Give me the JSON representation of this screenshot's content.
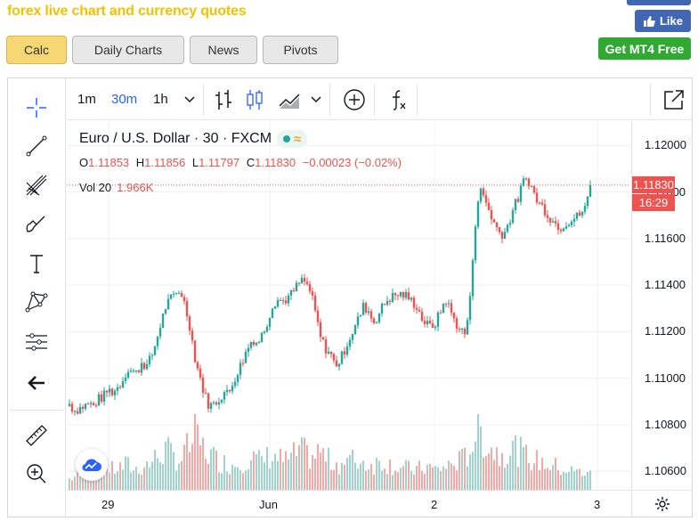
{
  "page": {
    "title": "forex live chart and currency quotes"
  },
  "social": {
    "like_label": "Like",
    "mt4_label": "Get MT4 Free"
  },
  "tabs": [
    {
      "label": "Calc",
      "active": true
    },
    {
      "label": "Daily Charts",
      "active": false
    },
    {
      "label": "News",
      "active": false
    },
    {
      "label": "Pivots",
      "active": false
    }
  ],
  "toolbar": {
    "timeframes": [
      {
        "label": "1m",
        "active": false
      },
      {
        "label": "30m",
        "active": true
      },
      {
        "label": "1h",
        "active": false
      }
    ],
    "icons": [
      "chevron-down-icon",
      "bar-chart-icon",
      "candlestick-icon",
      "area-chart-icon",
      "chevron-down-icon",
      "add-indicator-icon",
      "function-icon",
      "popout-icon"
    ]
  },
  "left_tools": [
    "crosshair-icon",
    "trend-line-icon",
    "fib-tool-icon",
    "brush-icon",
    "text-icon",
    "pattern-icon",
    "measure-tool-icon",
    "back-arrow-icon",
    "ruler-icon",
    "zoom-in-icon"
  ],
  "legend": {
    "symbol": "Euro / U.S. Dollar · 30 · FXCM",
    "ohlc": [
      {
        "k": "O",
        "v": "1.11853"
      },
      {
        "k": "H",
        "v": "1.11856"
      },
      {
        "k": "L",
        "v": "1.11797"
      },
      {
        "k": "C",
        "v": "1.11830"
      }
    ],
    "change": "−0.00023 (−0.02%)",
    "vol_label": "Vol 20",
    "vol_value": "1.966K"
  },
  "price_axis": {
    "ticks": [
      "1.12000",
      "1.11800",
      "1.11600",
      "1.11400",
      "1.11200",
      "1.11000",
      "1.10800",
      "1.10600"
    ]
  },
  "time_axis": {
    "ticks": [
      "29",
      "Jun",
      "2",
      "3"
    ]
  },
  "last_price": {
    "value": "1.11830",
    "countdown": "16:29"
  },
  "colors": {
    "up": "#26a69a",
    "down": "#ef5350",
    "vol_up": "#9fd3cb",
    "vol_down": "#f5a9a7",
    "accent": "#2962ff"
  },
  "chart_data": {
    "type": "candlestick",
    "ylim": [
      1.1052,
      1.12105
    ],
    "close_path": [
      1.1089,
      1.1086,
      1.1087,
      1.1088,
      1.1089,
      1.1088,
      1.1091,
      1.1092,
      1.1095,
      1.1094,
      1.1096,
      1.1099,
      1.1104,
      1.1103,
      1.1102,
      1.1107,
      1.1105,
      1.1109,
      1.1116,
      1.1124,
      1.1131,
      1.1134,
      1.1136,
      1.1138,
      1.1131,
      1.1122,
      1.1109,
      1.1101,
      1.1093,
      1.1088,
      1.1089,
      1.1091,
      1.1094,
      1.1093,
      1.1099,
      1.1103,
      1.1108,
      1.1113,
      1.1117,
      1.1115,
      1.1119,
      1.1124,
      1.1131,
      1.1134,
      1.1133,
      1.1134,
      1.1136,
      1.1139,
      1.1142,
      1.1141,
      1.1137,
      1.1128,
      1.1118,
      1.1113,
      1.1111,
      1.1106,
      1.1107,
      1.1112,
      1.1117,
      1.1121,
      1.1126,
      1.1131,
      1.1129,
      1.1124,
      1.1127,
      1.1131,
      1.1134,
      1.1135,
      1.1136,
      1.1136,
      1.1135,
      1.1133,
      1.1131,
      1.1126,
      1.1123,
      1.1122,
      1.1124,
      1.1129,
      1.1134,
      1.1129,
      1.1124,
      1.1121,
      1.1119,
      1.1131,
      1.1164,
      1.1181,
      1.1178,
      1.1172,
      1.1167,
      1.1163,
      1.1162,
      1.1166,
      1.1173,
      1.1177,
      1.1184,
      1.1186,
      1.1181,
      1.1176,
      1.1174,
      1.1171,
      1.1168,
      1.1166,
      1.1165,
      1.1167,
      1.1168,
      1.1169,
      1.1171,
      1.1173,
      1.1183
    ],
    "volume_path": [
      0.15,
      0.18,
      0.2,
      0.22,
      0.25,
      0.22,
      0.2,
      0.25,
      0.3,
      0.28,
      0.3,
      0.32,
      0.35,
      0.3,
      0.28,
      0.32,
      0.35,
      0.38,
      0.45,
      0.5,
      0.55,
      0.5,
      0.45,
      0.4,
      0.55,
      0.6,
      0.75,
      0.65,
      0.55,
      0.5,
      0.45,
      0.4,
      0.38,
      0.35,
      0.35,
      0.38,
      0.4,
      0.42,
      0.45,
      0.4,
      0.42,
      0.45,
      0.48,
      0.45,
      0.42,
      0.4,
      0.45,
      0.5,
      0.55,
      0.5,
      0.45,
      0.48,
      0.55,
      0.45,
      0.4,
      0.38,
      0.36,
      0.38,
      0.4,
      0.42,
      0.4,
      0.38,
      0.36,
      0.35,
      0.38,
      0.4,
      0.36,
      0.34,
      0.32,
      0.3,
      0.3,
      0.28,
      0.28,
      0.3,
      0.32,
      0.3,
      0.28,
      0.3,
      0.32,
      0.35,
      0.38,
      0.4,
      0.45,
      0.55,
      0.75,
      0.85,
      0.7,
      0.6,
      0.55,
      0.5,
      0.52,
      0.55,
      0.6,
      0.55,
      0.5,
      0.45,
      0.42,
      0.4,
      0.38,
      0.36,
      0.34,
      0.32,
      0.3,
      0.28,
      0.26,
      0.25,
      0.24,
      0.25,
      0.28
    ]
  }
}
